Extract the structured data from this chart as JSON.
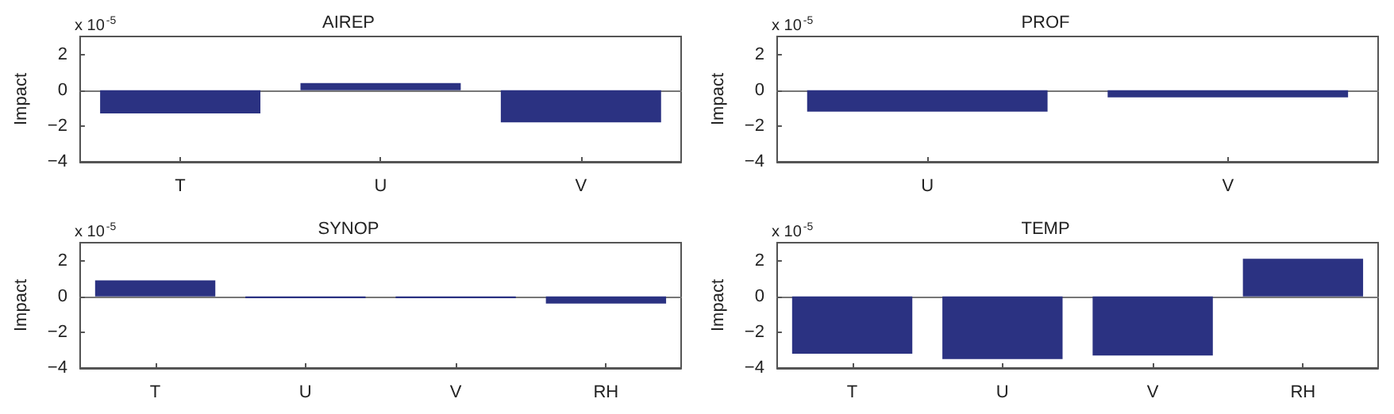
{
  "chart_data": [
    {
      "type": "bar",
      "title": "AIREP",
      "ylabel": "Impact",
      "annotations": [
        "x 10$^{-5}$"
      ],
      "categories": [
        "T",
        "U",
        "V"
      ],
      "values": [
        -1.3,
        0.4,
        -1.8
      ],
      "color": "#2b3282",
      "ylim": [
        -4,
        3
      ],
      "yticks": [
        -4,
        -2,
        0,
        2
      ]
    },
    {
      "type": "bar",
      "title": "PROF",
      "ylabel": "Impact",
      "annotations": [
        "x 10$^{-5}$"
      ],
      "categories": [
        "U",
        "V"
      ],
      "values": [
        -1.2,
        -0.4
      ],
      "color": "#2b3282",
      "ylim": [
        -4,
        3
      ],
      "yticks": [
        -4,
        -2,
        0,
        2
      ]
    },
    {
      "type": "bar",
      "title": "SYNOP",
      "ylabel": "Impact",
      "annotations": [
        "x 10$^{-5}$"
      ],
      "categories": [
        "T",
        "U",
        "V",
        "RH"
      ],
      "values": [
        0.9,
        -0.1,
        -0.1,
        -0.4
      ],
      "color": "#2b3282",
      "ylim": [
        -4,
        3
      ],
      "yticks": [
        -4,
        -2,
        0,
        2
      ]
    },
    {
      "type": "bar",
      "title": "TEMP",
      "ylabel": "Impact",
      "annotations": [
        "x 10$^{-5}$"
      ],
      "categories": [
        "T",
        "U",
        "V",
        "RH"
      ],
      "values": [
        -3.2,
        -3.5,
        -3.3,
        2.1
      ],
      "color": "#2b3282",
      "ylim": [
        -4,
        3
      ],
      "yticks": [
        -4,
        -2,
        0,
        2
      ]
    }
  ]
}
